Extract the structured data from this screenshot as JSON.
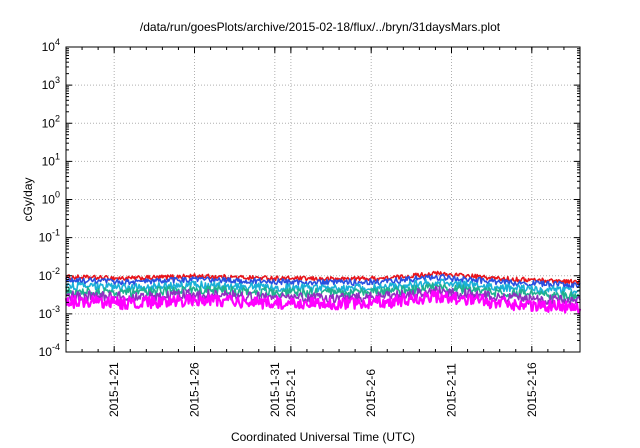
{
  "chart_data": {
    "type": "line",
    "title": "/data/run/goesPlots/archive/2015-02-18/flux/../bryn/31daysMars.plot",
    "xlabel": "Coordinated Universal Time (UTC)",
    "ylabel": "cGy/day",
    "yscale": "log",
    "ylim": [
      0.0001,
      10000
    ],
    "y_ticks": [
      {
        "value": 0.0001,
        "base": "10",
        "exp": "-4"
      },
      {
        "value": 0.001,
        "base": "10",
        "exp": "-3"
      },
      {
        "value": 0.01,
        "base": "10",
        "exp": "-2"
      },
      {
        "value": 0.1,
        "base": "10",
        "exp": "-1"
      },
      {
        "value": 1,
        "base": "10",
        "exp": "0"
      },
      {
        "value": 10,
        "base": "10",
        "exp": "1"
      },
      {
        "value": 100,
        "base": "10",
        "exp": "2"
      },
      {
        "value": 1000,
        "base": "10",
        "exp": "3"
      },
      {
        "value": 10000,
        "base": "10",
        "exp": "4"
      }
    ],
    "xlim": [
      "2015-01-18",
      "2015-02-19"
    ],
    "x_ticks": [
      "2015-1-21",
      "2015-1-26",
      "2015-1-31",
      "2015-2-1",
      "2015-2-6",
      "2015-2-11",
      "2015-2-16"
    ],
    "grid": true,
    "series": [
      {
        "color": "#e8141a",
        "x": [
          "2015-01-18",
          "2015-01-22",
          "2015-01-26",
          "2015-01-30",
          "2015-02-03",
          "2015-02-07",
          "2015-02-10",
          "2015-02-14",
          "2015-02-18",
          "2015-02-19"
        ],
        "y": [
          0.0092,
          0.0085,
          0.0098,
          0.0088,
          0.0082,
          0.0086,
          0.0115,
          0.0084,
          0.0072,
          0.0068
        ]
      },
      {
        "color": "#2850e0",
        "x": [
          "2015-01-18",
          "2015-01-22",
          "2015-01-26",
          "2015-01-30",
          "2015-02-03",
          "2015-02-07",
          "2015-02-10",
          "2015-02-14",
          "2015-02-18",
          "2015-02-19"
        ],
        "y": [
          0.0075,
          0.0068,
          0.008,
          0.0071,
          0.0066,
          0.007,
          0.0093,
          0.0068,
          0.0058,
          0.0055
        ]
      },
      {
        "color": "#1ab0d8",
        "x": [
          "2015-01-18",
          "2015-01-22",
          "2015-01-26",
          "2015-01-30",
          "2015-02-03",
          "2015-02-07",
          "2015-02-10",
          "2015-02-14",
          "2015-02-18",
          "2015-02-19"
        ],
        "y": [
          0.0054,
          0.0049,
          0.0058,
          0.0051,
          0.0047,
          0.005,
          0.0068,
          0.0049,
          0.0041,
          0.0039
        ]
      },
      {
        "color": "#20b090",
        "x": [
          "2015-01-18",
          "2015-01-22",
          "2015-01-26",
          "2015-01-30",
          "2015-02-03",
          "2015-02-07",
          "2015-02-10",
          "2015-02-14",
          "2015-02-18",
          "2015-02-19"
        ],
        "y": [
          0.004,
          0.0036,
          0.0043,
          0.0038,
          0.0035,
          0.0037,
          0.005,
          0.0036,
          0.003,
          0.0028
        ]
      },
      {
        "color": "#9030c0",
        "x": [
          "2015-01-18",
          "2015-01-22",
          "2015-01-26",
          "2015-01-30",
          "2015-02-03",
          "2015-02-07",
          "2015-02-10",
          "2015-02-14",
          "2015-02-18",
          "2015-02-19"
        ],
        "y": [
          0.003,
          0.0027,
          0.0032,
          0.0028,
          0.0026,
          0.0028,
          0.0038,
          0.0027,
          0.0022,
          0.0021
        ]
      },
      {
        "color": "#ff00ff",
        "x": [
          "2015-01-18",
          "2015-01-22",
          "2015-01-26",
          "2015-01-30",
          "2015-02-03",
          "2015-02-07",
          "2015-02-10",
          "2015-02-14",
          "2015-02-18",
          "2015-02-19"
        ],
        "y": [
          0.0021,
          0.0019,
          0.0023,
          0.002,
          0.0018,
          0.002,
          0.0029,
          0.0019,
          0.0015,
          0.0014
        ]
      }
    ]
  }
}
